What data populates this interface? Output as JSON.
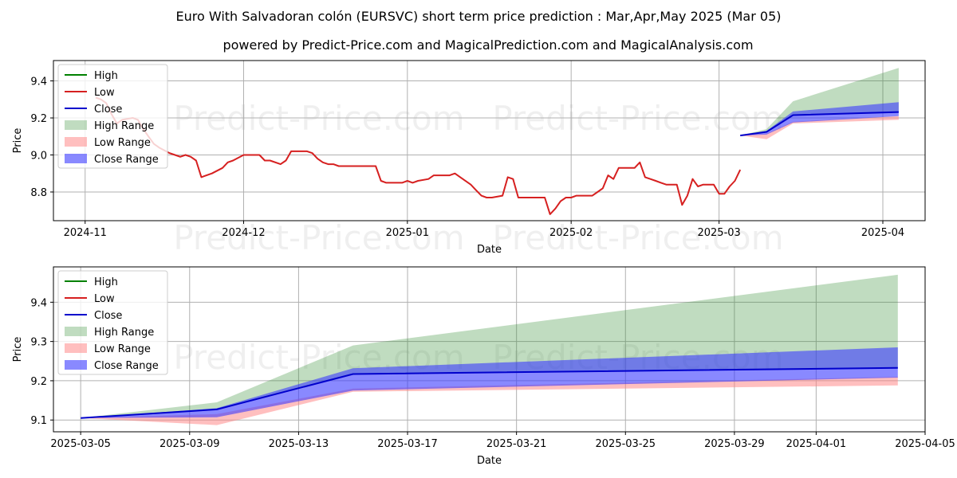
{
  "title": "Euro With Salvadoran colón (EURSVC) short term price prediction : Mar,Apr,May 2025 (Mar 05)",
  "subtitle": "powered by Predict-Price.com and MagicalPrediction.com and MagicalAnalysis.com",
  "watermark": "Predict-Price.com",
  "colors": {
    "high": "#008000",
    "low": "#d62020",
    "close": "#0000cc",
    "high_range": "#2e8b2e",
    "low_range": "#ff7f7f",
    "close_range": "#3a3aff",
    "grid": "#b0b0b0"
  },
  "chart_data": [
    {
      "type": "line",
      "xlabel": "Date",
      "ylabel": "Price",
      "xlim": [
        "2024-10-26",
        "2025-04-09"
      ],
      "ylim": [
        8.645,
        9.51
      ],
      "x_ticks": [
        {
          "date": "2024-11-01",
          "label": "2024-11"
        },
        {
          "date": "2024-12-01",
          "label": "2024-12"
        },
        {
          "date": "2025-01-01",
          "label": "2025-01"
        },
        {
          "date": "2025-02-01",
          "label": "2025-02"
        },
        {
          "date": "2025-03-01",
          "label": "2025-03"
        },
        {
          "date": "2025-04-01",
          "label": "2025-04"
        }
      ],
      "y_ticks": [
        8.8,
        9.0,
        9.2,
        9.4
      ],
      "legend": [
        "High",
        "Low",
        "Close",
        "High Range",
        "Low Range",
        "Close Range"
      ],
      "legend_position": "upper-left",
      "grid": true,
      "history": {
        "name": "Low",
        "points": [
          [
            "2024-11-03",
            9.31
          ],
          [
            "2024-11-04",
            9.3
          ],
          [
            "2024-11-05",
            9.28
          ],
          [
            "2024-11-06",
            9.22
          ],
          [
            "2024-11-07",
            9.17
          ],
          [
            "2024-11-08",
            9.19
          ],
          [
            "2024-11-10",
            9.2
          ],
          [
            "2024-11-11",
            9.19
          ],
          [
            "2024-11-12",
            9.14
          ],
          [
            "2024-11-13",
            9.1
          ],
          [
            "2024-11-14",
            9.06
          ],
          [
            "2024-11-15",
            9.04
          ],
          [
            "2024-11-17",
            9.01
          ],
          [
            "2024-11-18",
            9.0
          ],
          [
            "2024-11-19",
            8.99
          ],
          [
            "2024-11-20",
            9.0
          ],
          [
            "2024-11-21",
            8.99
          ],
          [
            "2024-11-22",
            8.97
          ],
          [
            "2024-11-23",
            8.88
          ],
          [
            "2024-11-25",
            8.9
          ],
          [
            "2024-11-27",
            8.93
          ],
          [
            "2024-11-28",
            8.96
          ],
          [
            "2024-11-29",
            8.97
          ],
          [
            "2024-12-01",
            9.0
          ],
          [
            "2024-12-02",
            9.0
          ],
          [
            "2024-12-04",
            9.0
          ],
          [
            "2024-12-05",
            8.97
          ],
          [
            "2024-12-06",
            8.97
          ],
          [
            "2024-12-08",
            8.95
          ],
          [
            "2024-12-09",
            8.97
          ],
          [
            "2024-12-10",
            9.02
          ],
          [
            "2024-12-11",
            9.02
          ],
          [
            "2024-12-13",
            9.02
          ],
          [
            "2024-12-14",
            9.01
          ],
          [
            "2024-12-15",
            8.98
          ],
          [
            "2024-12-16",
            8.96
          ],
          [
            "2024-12-17",
            8.95
          ],
          [
            "2024-12-18",
            8.95
          ],
          [
            "2024-12-19",
            8.94
          ],
          [
            "2024-12-20",
            8.94
          ],
          [
            "2024-12-22",
            8.94
          ],
          [
            "2024-12-23",
            8.94
          ],
          [
            "2024-12-24",
            8.94
          ],
          [
            "2024-12-26",
            8.94
          ],
          [
            "2024-12-27",
            8.86
          ],
          [
            "2024-12-28",
            8.85
          ],
          [
            "2024-12-30",
            8.85
          ],
          [
            "2024-12-31",
            8.85
          ],
          [
            "2025-01-01",
            8.86
          ],
          [
            "2025-01-02",
            8.85
          ],
          [
            "2025-01-03",
            8.86
          ],
          [
            "2025-01-05",
            8.87
          ],
          [
            "2025-01-06",
            8.89
          ],
          [
            "2025-01-07",
            8.89
          ],
          [
            "2025-01-08",
            8.89
          ],
          [
            "2025-01-09",
            8.89
          ],
          [
            "2025-01-10",
            8.9
          ],
          [
            "2025-01-11",
            8.88
          ],
          [
            "2025-01-13",
            8.84
          ],
          [
            "2025-01-14",
            8.81
          ],
          [
            "2025-01-15",
            8.78
          ],
          [
            "2025-01-16",
            8.77
          ],
          [
            "2025-01-17",
            8.77
          ],
          [
            "2025-01-19",
            8.78
          ],
          [
            "2025-01-20",
            8.88
          ],
          [
            "2025-01-21",
            8.87
          ],
          [
            "2025-01-22",
            8.77
          ],
          [
            "2025-01-23",
            8.77
          ],
          [
            "2025-01-24",
            8.77
          ],
          [
            "2025-01-25",
            8.77
          ],
          [
            "2025-01-27",
            8.77
          ],
          [
            "2025-01-28",
            8.68
          ],
          [
            "2025-01-29",
            8.71
          ],
          [
            "2025-01-30",
            8.75
          ],
          [
            "2025-01-31",
            8.77
          ],
          [
            "2025-02-01",
            8.77
          ],
          [
            "2025-02-02",
            8.78
          ],
          [
            "2025-02-03",
            8.78
          ],
          [
            "2025-02-04",
            8.78
          ],
          [
            "2025-02-05",
            8.78
          ],
          [
            "2025-02-06",
            8.8
          ],
          [
            "2025-02-07",
            8.82
          ],
          [
            "2025-02-08",
            8.89
          ],
          [
            "2025-02-09",
            8.87
          ],
          [
            "2025-02-10",
            8.93
          ],
          [
            "2025-02-11",
            8.93
          ],
          [
            "2025-02-12",
            8.93
          ],
          [
            "2025-02-13",
            8.93
          ],
          [
            "2025-02-14",
            8.96
          ],
          [
            "2025-02-15",
            8.88
          ],
          [
            "2025-02-16",
            8.87
          ],
          [
            "2025-02-17",
            8.86
          ],
          [
            "2025-02-18",
            8.85
          ],
          [
            "2025-02-19",
            8.84
          ],
          [
            "2025-02-20",
            8.84
          ],
          [
            "2025-02-21",
            8.84
          ],
          [
            "2025-02-22",
            8.73
          ],
          [
            "2025-02-23",
            8.78
          ],
          [
            "2025-02-24",
            8.87
          ],
          [
            "2025-02-25",
            8.83
          ],
          [
            "2025-02-26",
            8.84
          ],
          [
            "2025-02-27",
            8.84
          ],
          [
            "2025-02-28",
            8.84
          ],
          [
            "2025-03-01",
            8.79
          ],
          [
            "2025-03-02",
            8.79
          ],
          [
            "2025-03-03",
            8.83
          ],
          [
            "2025-03-04",
            8.86
          ],
          [
            "2025-03-05",
            8.92
          ]
        ]
      },
      "forecast": {
        "dates": [
          "2025-03-05",
          "2025-03-10",
          "2025-03-15",
          "2025-04-04"
        ],
        "close": [
          9.105,
          9.125,
          9.215,
          9.232
        ],
        "high_range_upper": [
          9.105,
          9.14,
          9.29,
          9.47
        ],
        "high_range_lower": [
          9.105,
          9.125,
          9.215,
          9.232
        ],
        "low_range_upper": [
          9.105,
          9.115,
          9.18,
          9.21
        ],
        "low_range_lower": [
          9.105,
          9.085,
          9.17,
          9.19
        ],
        "close_range_upper": [
          9.105,
          9.13,
          9.235,
          9.285
        ],
        "close_range_lower": [
          9.105,
          9.11,
          9.175,
          9.21
        ]
      }
    },
    {
      "type": "line",
      "xlabel": "Date",
      "ylabel": "Price",
      "xlim": [
        "2025-03-04",
        "2025-04-05"
      ],
      "ylim": [
        9.07,
        9.49
      ],
      "x_ticks": [
        {
          "date": "2025-03-05",
          "label": "2025-03-05"
        },
        {
          "date": "2025-03-09",
          "label": "2025-03-09"
        },
        {
          "date": "2025-03-13",
          "label": "2025-03-13"
        },
        {
          "date": "2025-03-17",
          "label": "2025-03-17"
        },
        {
          "date": "2025-03-21",
          "label": "2025-03-21"
        },
        {
          "date": "2025-03-25",
          "label": "2025-03-25"
        },
        {
          "date": "2025-03-29",
          "label": "2025-03-29"
        },
        {
          "date": "2025-04-01",
          "label": "2025-04-01"
        },
        {
          "date": "2025-04-05",
          "label": "2025-04-05"
        }
      ],
      "y_ticks": [
        9.1,
        9.2,
        9.3,
        9.4
      ],
      "legend": [
        "High",
        "Low",
        "Close",
        "High Range",
        "Low Range",
        "Close Range"
      ],
      "legend_position": "upper-left",
      "grid": true,
      "forecast": {
        "dates": [
          "2025-03-05",
          "2025-03-10",
          "2025-03-15",
          "2025-04-04"
        ],
        "close": [
          9.105,
          9.127,
          9.217,
          9.233
        ],
        "high_range_upper": [
          9.105,
          9.145,
          9.29,
          9.47
        ],
        "high_range_lower": [
          9.105,
          9.127,
          9.217,
          9.233
        ],
        "low_range_upper": [
          9.105,
          9.115,
          9.18,
          9.21
        ],
        "low_range_lower": [
          9.105,
          9.087,
          9.172,
          9.188
        ],
        "close_range_upper": [
          9.105,
          9.13,
          9.232,
          9.285
        ],
        "close_range_lower": [
          9.105,
          9.107,
          9.175,
          9.208
        ]
      }
    }
  ]
}
